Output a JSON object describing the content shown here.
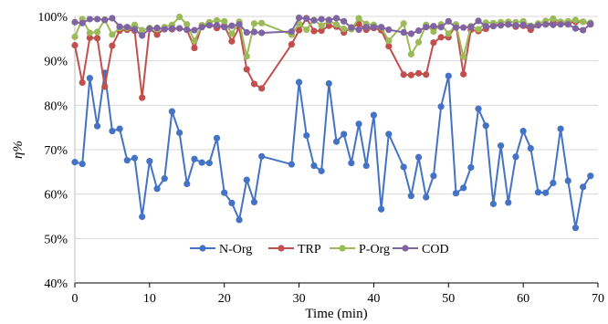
{
  "chart_data": {
    "type": "line",
    "xlabel": "Time (min)",
    "ylabel": "η%",
    "xlim": [
      0,
      70
    ],
    "ylim": [
      40,
      100
    ],
    "xticks": [
      "0",
      "10",
      "20",
      "30",
      "40",
      "50",
      "60",
      "70"
    ],
    "yticks": [
      "40%",
      "50%",
      "60%",
      "70%",
      "80%",
      "90%",
      "100%"
    ],
    "grid": "horizontal",
    "legend_position": "bottom-center",
    "series": [
      {
        "name": "N-Org",
        "color": "#4472C4",
        "x": [
          0,
          1,
          2,
          3,
          4,
          5,
          6,
          7,
          8,
          9,
          10,
          11,
          12,
          13,
          14,
          15,
          16,
          17,
          18,
          19,
          20,
          21,
          22,
          23,
          24,
          25,
          29,
          30,
          31,
          32,
          33,
          34,
          35,
          36,
          37,
          38,
          39,
          40,
          41,
          42,
          44,
          45,
          46,
          47,
          48,
          49,
          50,
          51,
          52,
          53,
          54,
          55,
          56,
          57,
          58,
          59,
          60,
          61,
          62,
          63,
          64,
          65,
          66,
          67,
          68,
          69
        ],
        "y": [
          67.2,
          66.8,
          86.1,
          75.3,
          87.3,
          74.2,
          74.7,
          67.6,
          68.1,
          54.9,
          67.4,
          61.2,
          63.5,
          78.6,
          73.8,
          62.3,
          67.9,
          67.1,
          67.0,
          72.6,
          60.3,
          58.0,
          54.2,
          63.2,
          58.2,
          68.5,
          66.7,
          85.2,
          73.2,
          66.4,
          65.2,
          84.9,
          71.8,
          73.5,
          67.0,
          75.8,
          66.4,
          77.8,
          56.6,
          73.5,
          66.1,
          59.6,
          68.3,
          59.3,
          64.1,
          79.7,
          86.6,
          60.2,
          61.4,
          66.0,
          79.2,
          75.4,
          57.8,
          70.9,
          58.1,
          68.4,
          74.2,
          70.3,
          60.4,
          60.3,
          62.5,
          74.7,
          63.0,
          52.4,
          61.6,
          64.1
        ]
      },
      {
        "name": "TRP",
        "color": "#C0504D",
        "x": [
          0,
          1,
          2,
          3,
          4,
          5,
          6,
          7,
          8,
          9,
          10,
          11,
          12,
          13,
          14,
          15,
          16,
          17,
          18,
          19,
          20,
          21,
          22,
          23,
          24,
          25,
          29,
          30,
          31,
          32,
          33,
          34,
          35,
          36,
          37,
          38,
          39,
          40,
          41,
          42,
          44,
          45,
          46,
          47,
          48,
          49,
          50,
          51,
          52,
          53,
          54,
          55,
          56,
          57,
          58,
          59,
          60,
          61,
          62,
          63,
          64,
          65,
          66,
          67,
          68,
          69
        ],
        "y": [
          93.5,
          85.1,
          95.2,
          95.1,
          84.2,
          93.4,
          96.8,
          97.0,
          96.8,
          81.7,
          97.3,
          95.9,
          97.3,
          97.1,
          97.3,
          97.0,
          92.9,
          98.0,
          98.2,
          97.4,
          97.9,
          94.4,
          97.5,
          88.1,
          84.8,
          83.8,
          93.7,
          96.9,
          99.6,
          96.7,
          96.8,
          97.9,
          97.7,
          96.4,
          97.5,
          98.3,
          97.0,
          97.4,
          96.9,
          93.3,
          86.9,
          86.8,
          87.2,
          86.9,
          94.1,
          95.3,
          95.3,
          98.1,
          87.0,
          97.0,
          96.7,
          97.2,
          98.1,
          98.1,
          98.2,
          97.7,
          97.9,
          97.0,
          98.1,
          98.2,
          98.6,
          98.7,
          98.5,
          98.8,
          98.8,
          98.2
        ]
      },
      {
        "name": "P-Org",
        "color": "#9BBB59",
        "x": [
          0,
          1,
          2,
          3,
          4,
          5,
          6,
          7,
          8,
          9,
          10,
          11,
          12,
          13,
          14,
          15,
          16,
          17,
          18,
          19,
          20,
          21,
          22,
          23,
          24,
          25,
          29,
          30,
          31,
          32,
          33,
          34,
          35,
          36,
          37,
          38,
          39,
          40,
          41,
          42,
          44,
          45,
          46,
          47,
          48,
          49,
          50,
          51,
          52,
          53,
          54,
          55,
          56,
          57,
          58,
          59,
          60,
          61,
          62,
          63,
          64,
          65,
          66,
          67,
          68,
          69
        ],
        "y": [
          95.4,
          99.4,
          96.3,
          96.5,
          99.3,
          95.9,
          97.4,
          97.4,
          98.1,
          96.9,
          97.4,
          97.1,
          97.6,
          98.1,
          99.9,
          98.2,
          94.5,
          98.0,
          98.7,
          99.1,
          98.9,
          96.1,
          98.8,
          91.0,
          98.4,
          98.5,
          95.9,
          98.3,
          97.0,
          99.2,
          97.9,
          99.0,
          98.2,
          97.2,
          97.1,
          99.6,
          98.3,
          98.1,
          97.5,
          94.5,
          98.4,
          91.5,
          94.2,
          98.1,
          96.6,
          98.2,
          96.1,
          98.2,
          90.9,
          97.8,
          97.1,
          98.6,
          98.5,
          98.7,
          98.8,
          98.7,
          98.9,
          97.9,
          98.4,
          99.0,
          99.5,
          98.8,
          98.9,
          99.2,
          98.8,
          98.6
        ]
      },
      {
        "name": "COD",
        "color": "#8064A2",
        "x": [
          0,
          1,
          2,
          3,
          4,
          5,
          6,
          7,
          8,
          9,
          10,
          11,
          12,
          13,
          14,
          15,
          16,
          17,
          18,
          19,
          20,
          21,
          22,
          23,
          24,
          25,
          29,
          30,
          31,
          32,
          33,
          34,
          35,
          36,
          37,
          38,
          39,
          40,
          41,
          42,
          44,
          45,
          46,
          47,
          48,
          49,
          50,
          51,
          52,
          53,
          54,
          55,
          56,
          57,
          58,
          59,
          60,
          61,
          62,
          63,
          64,
          65,
          66,
          67,
          68,
          69
        ],
        "y": [
          98.7,
          98.5,
          99.4,
          99.4,
          99.2,
          99.6,
          97.7,
          97.6,
          97.1,
          95.7,
          97.2,
          97.4,
          97.1,
          97.3,
          97.3,
          97.0,
          96.9,
          97.6,
          98.0,
          98.0,
          97.6,
          97.9,
          98.2,
          96.4,
          96.5,
          96.3,
          96.6,
          99.7,
          99.5,
          99.1,
          99.4,
          99.2,
          99.6,
          98.9,
          97.5,
          97.0,
          97.6,
          97.6,
          97.6,
          97.0,
          96.4,
          96.1,
          96.8,
          97.6,
          97.8,
          97.6,
          98.9,
          97.5,
          97.5,
          97.6,
          99.0,
          97.8,
          97.8,
          98.0,
          98.2,
          98.0,
          98.1,
          97.7,
          98.0,
          98.2,
          98.1,
          98.2,
          98.2,
          97.3,
          96.9,
          98.3
        ]
      }
    ]
  }
}
